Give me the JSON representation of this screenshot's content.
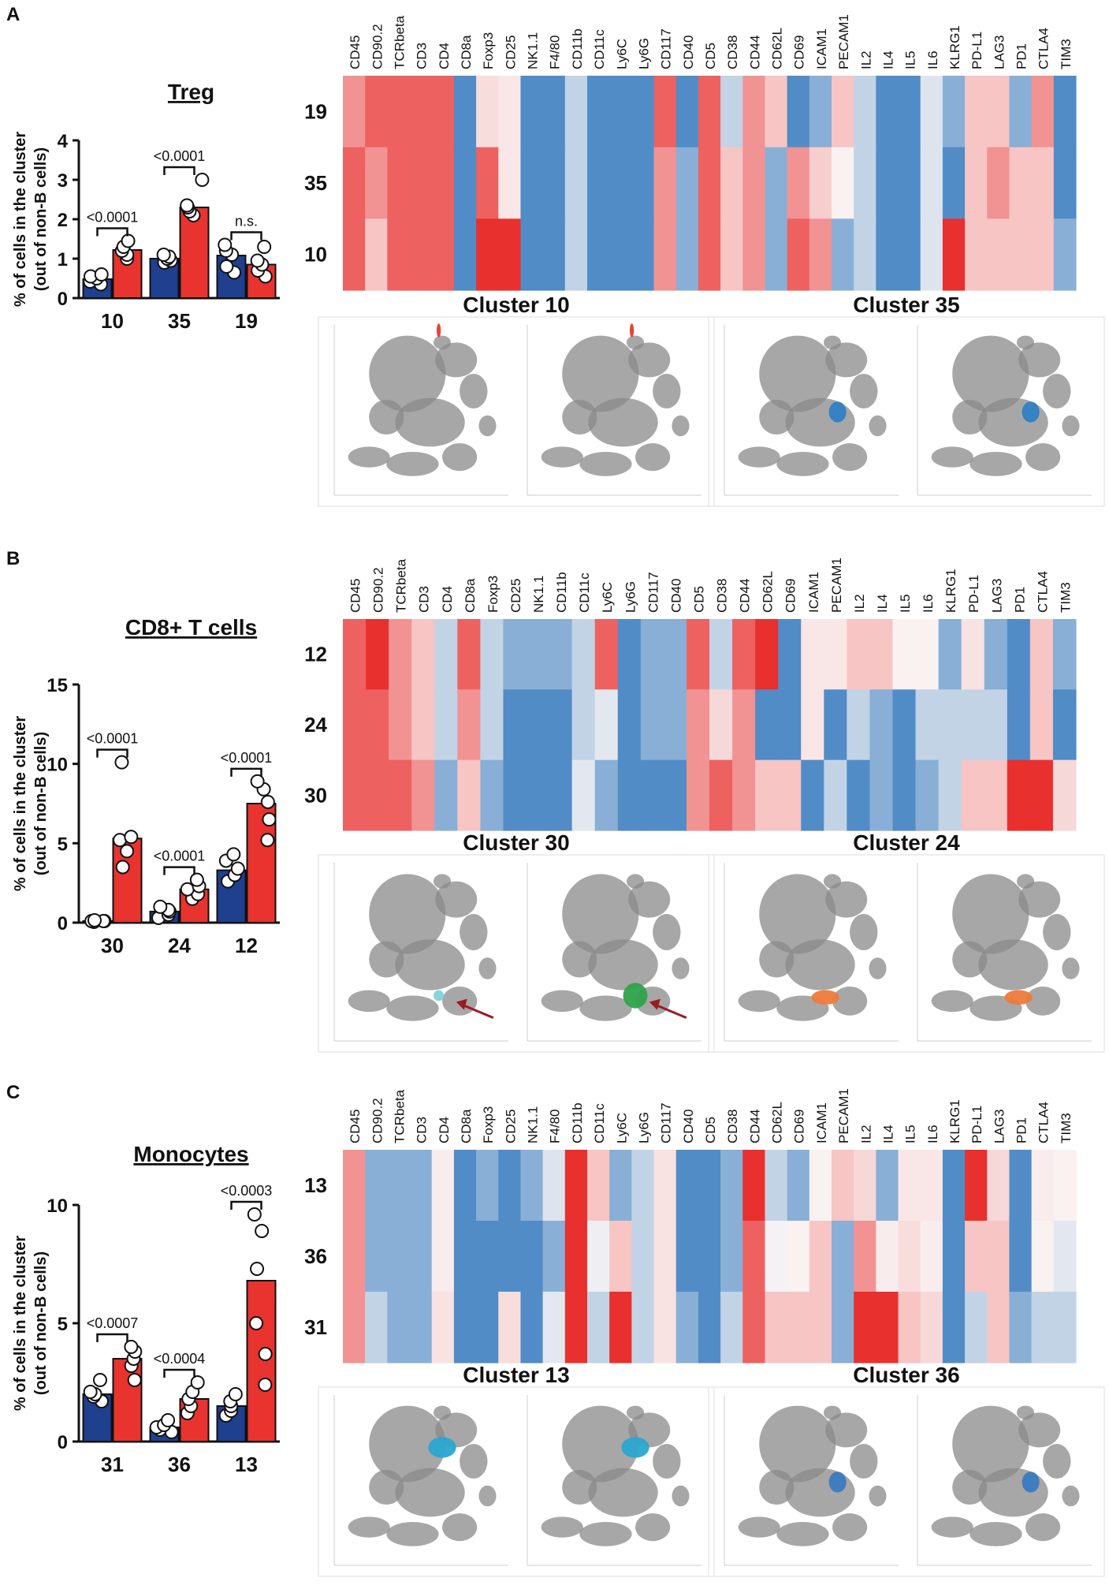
{
  "colors": {
    "ctrl": "#1f3f8f",
    "treat": "#e8332e",
    "tsne_bg": "#8a8a8a"
  },
  "panels": [
    {
      "letter": "A",
      "title": "Treg",
      "ylabel_line1": "% of cells in the cluster",
      "ylabel_line2": "(out of non-B cells)",
      "clusters": [
        {
          "label": "10",
          "ctrl": 0.48,
          "treat": 1.22,
          "ctrl_pts": [
            0.35,
            0.42,
            0.5,
            0.55,
            0.6
          ],
          "treat_pts": [
            1.0,
            1.1,
            1.2,
            1.3,
            1.45
          ],
          "pval": "<0.0001"
        },
        {
          "label": "35",
          "ctrl": 1.0,
          "treat": 2.3,
          "ctrl_pts": [
            0.9,
            0.95,
            1.0,
            1.05,
            1.1
          ],
          "treat_pts": [
            2.1,
            2.2,
            2.3,
            2.35,
            3.0
          ],
          "pval": "<0.0001"
        },
        {
          "label": "19",
          "ctrl": 1.08,
          "treat": 0.85,
          "ctrl_pts": [
            0.65,
            0.8,
            1.1,
            1.2,
            1.35
          ],
          "treat_pts": [
            0.55,
            0.7,
            0.85,
            0.95,
            1.3
          ],
          "pval": "n.s."
        }
      ],
      "ymax": 4,
      "yticks": [
        0,
        1,
        2,
        3,
        4
      ],
      "heatmap": {
        "markers": [
          "CD45",
          "CD90.2",
          "TCRbeta",
          "CD3",
          "CD4",
          "CD8a",
          "Foxp3",
          "CD25",
          "NK1.1",
          "F4/80",
          "CD11b",
          "CD11c",
          "Ly6C",
          "Ly6G",
          "CD117",
          "CD40",
          "CD5",
          "CD38",
          "CD44",
          "CD62L",
          "CD69",
          "ICAM1",
          "PECAM1",
          "IL2",
          "IL4",
          "IL5",
          "IL6",
          "KLRG1",
          "PD-L1",
          "LAG3",
          "PD1",
          "CTLA4",
          "TIM3"
        ],
        "rows": [
          "19",
          "35",
          "10"
        ],
        "values": [
          [
            2,
            3,
            3,
            3,
            3,
            -3,
            0.5,
            0.3,
            -3,
            -3,
            -1,
            -3,
            -3,
            -3,
            3,
            -3,
            3,
            -1,
            2,
            1,
            -3,
            -2,
            1,
            -1,
            -3,
            -3,
            -0.5,
            -2,
            1,
            1,
            -2,
            2,
            -3
          ],
          [
            3,
            2,
            3,
            3,
            3,
            -3,
            3,
            0.3,
            -3,
            -3,
            -1,
            -3,
            -3,
            -3,
            2,
            -2,
            3,
            1,
            2,
            -2,
            2,
            0.8,
            0.1,
            -1,
            -3,
            -3,
            -0.5,
            -3,
            1,
            2,
            1,
            1,
            -3
          ],
          [
            3,
            1,
            3,
            3,
            3,
            -3,
            4,
            4,
            -3,
            -3,
            -1,
            -3,
            -3,
            -3,
            2,
            -2,
            3,
            1,
            2,
            -2,
            3,
            2,
            -2,
            -1,
            -3,
            -3,
            -0.5,
            4,
            1,
            1,
            1,
            1,
            -2
          ]
        ]
      },
      "tsne": {
        "left_title": "Cluster 10",
        "right_title": "Cluster 35",
        "maps": [
          {
            "type": "red-small",
            "color": "#e83a2e",
            "arrow": false
          },
          {
            "type": "red-small",
            "color": "#e83a2e",
            "arrow": false
          },
          {
            "type": "blue-small",
            "color": "#2f7fc4",
            "arrow": false
          },
          {
            "type": "blue-small",
            "color": "#2f7fc4",
            "arrow": false
          }
        ]
      }
    },
    {
      "letter": "B",
      "title": "CD8+ T cells",
      "ylabel_line1": "% of cells in the cluster",
      "ylabel_line2": "(out of non-B cells)",
      "clusters": [
        {
          "label": "30",
          "ctrl": 0.1,
          "treat": 5.3,
          "ctrl_pts": [
            0.05,
            0.1,
            0.1,
            0.1,
            0.15
          ],
          "treat_pts": [
            3.5,
            4.5,
            5.2,
            5.4,
            10.1
          ],
          "pval": "<0.0001"
        },
        {
          "label": "24",
          "ctrl": 0.7,
          "treat": 2.1,
          "ctrl_pts": [
            0.3,
            0.5,
            0.7,
            0.8,
            1.0
          ],
          "treat_pts": [
            1.5,
            1.8,
            2.1,
            2.3,
            2.7
          ],
          "pval": "<0.0001"
        },
        {
          "label": "12",
          "ctrl": 3.3,
          "treat": 7.5,
          "ctrl_pts": [
            2.6,
            3.0,
            3.4,
            3.9,
            4.3
          ],
          "treat_pts": [
            5.2,
            6.5,
            7.6,
            8.4,
            8.9
          ],
          "pval": "<0.0001"
        }
      ],
      "ymax": 15,
      "yticks": [
        0,
        5,
        10,
        15
      ],
      "heatmap": {
        "markers": [
          "CD45",
          "CD90.2",
          "TCRbeta",
          "CD3",
          "CD4",
          "CD8a",
          "Foxp3",
          "CD25",
          "NK1.1",
          "CD11b",
          "CD11c",
          "Ly6C",
          "Ly6G",
          "CD117",
          "CD40",
          "CD5",
          "CD38",
          "CD44",
          "CD62L",
          "CD69",
          "ICAM1",
          "PECAM1",
          "IL2",
          "IL4",
          "IL5",
          "IL6",
          "KLRG1",
          "PD-L1",
          "LAG3",
          "PD1",
          "CTLA4",
          "TIM3"
        ],
        "rows": [
          "12",
          "24",
          "30"
        ],
        "values": [
          [
            3,
            4,
            2,
            1,
            -1,
            3,
            -1,
            -2,
            -2,
            -2,
            -1,
            3,
            -3,
            -2,
            -2,
            3,
            -1,
            3,
            4,
            -3,
            0.3,
            0.3,
            1,
            1,
            0.1,
            0.1,
            -2,
            0.4,
            -2,
            -3,
            1,
            -2
          ],
          [
            3,
            3,
            2,
            1,
            -1,
            2,
            -1,
            -3,
            -3,
            -3,
            -1,
            -0.4,
            -3,
            -2,
            -2,
            2,
            0.6,
            2,
            -3,
            -3,
            0.3,
            -3,
            -1,
            -2,
            -3,
            -1,
            -1,
            -1,
            -1,
            -3,
            1,
            -3
          ],
          [
            3,
            3,
            3,
            2,
            -2,
            1,
            -2,
            -3,
            -3,
            -3,
            -0.4,
            -2,
            -3,
            -3,
            -3,
            2,
            3,
            2,
            1,
            1,
            -3,
            -1,
            -3,
            -2,
            -3,
            -2,
            -1,
            1,
            1,
            4,
            4,
            0.6
          ]
        ]
      },
      "tsne": {
        "left_title": "Cluster 30",
        "right_title": "Cluster 24",
        "maps": [
          {
            "type": "cyan-tiny",
            "color": "#7fd3d8",
            "arrow": true
          },
          {
            "type": "green-blob",
            "color": "#2fa24a",
            "arrow": true
          },
          {
            "type": "orange-small",
            "color": "#ee7a3a",
            "arrow": false
          },
          {
            "type": "orange-small",
            "color": "#ee7a3a",
            "arrow": false
          }
        ]
      }
    },
    {
      "letter": "C",
      "title": "Monocytes",
      "ylabel_line1": "% of cells in the cluster",
      "ylabel_line2": "(out of non-B cells)",
      "clusters": [
        {
          "label": "31",
          "ctrl": 2.0,
          "treat": 3.5,
          "ctrl_pts": [
            1.7,
            1.9,
            2.0,
            2.1,
            2.6
          ],
          "treat_pts": [
            2.6,
            3.2,
            3.5,
            3.8,
            4.0
          ],
          "pval": "<0.0007"
        },
        {
          "label": "36",
          "ctrl": 0.6,
          "treat": 1.8,
          "ctrl_pts": [
            0.4,
            0.5,
            0.6,
            0.7,
            0.9
          ],
          "treat_pts": [
            1.2,
            1.5,
            1.8,
            2.1,
            2.5
          ],
          "pval": "<0.0004"
        },
        {
          "label": "13",
          "ctrl": 1.5,
          "treat": 6.8,
          "ctrl_pts": [
            1.1,
            1.3,
            1.5,
            1.7,
            2.0
          ],
          "treat_pts": [
            2.4,
            3.7,
            5.0,
            7.3,
            8.9,
            9.6
          ],
          "pval": "<0.0003"
        }
      ],
      "ymax": 10,
      "yticks": [
        0,
        5,
        10
      ],
      "heatmap": {
        "markers": [
          "CD45",
          "CD90.2",
          "TCRbeta",
          "CD3",
          "CD4",
          "CD8a",
          "Foxp3",
          "CD25",
          "NK1.1",
          "F4/80",
          "CD11b",
          "CD11c",
          "Ly6C",
          "Ly6G",
          "CD117",
          "CD40",
          "CD5",
          "CD38",
          "CD44",
          "CD62L",
          "CD69",
          "ICAM1",
          "PECAM1",
          "IL2",
          "IL4",
          "IL5",
          "IL6",
          "KLRG1",
          "PD-L1",
          "LAG3",
          "PD1",
          "CTLA4",
          "TIM3"
        ],
        "rows": [
          "13",
          "36",
          "31"
        ],
        "values": [
          [
            2,
            -2,
            -2,
            -2,
            0.2,
            -3,
            -2,
            -3,
            -2,
            -0.5,
            4,
            1,
            -2,
            -1,
            0.4,
            -3,
            -3,
            -2,
            4,
            -1,
            -2,
            0.1,
            1,
            0.6,
            -2,
            0.3,
            0.3,
            -3,
            4,
            0.6,
            -3,
            0.2,
            0.1
          ],
          [
            2,
            -2,
            -2,
            -2,
            0.2,
            -3,
            -3,
            -3,
            -3,
            -2,
            4,
            -0.2,
            1,
            -1,
            0.4,
            -3,
            -3,
            -2,
            3,
            -0.1,
            0.1,
            1,
            -2,
            2,
            0.2,
            0.5,
            0.2,
            -3,
            1,
            1,
            -3,
            0.1,
            -0.4
          ],
          [
            2,
            -1,
            -2,
            -2,
            0.4,
            -3,
            -3,
            0.5,
            -3,
            -0.4,
            4,
            -1,
            4,
            -1,
            0.4,
            -2,
            -3,
            -1,
            3,
            1,
            1,
            1,
            -2,
            4,
            4,
            1,
            0.6,
            -3,
            -1,
            1,
            -2,
            -1,
            -1
          ]
        ]
      },
      "tsne": {
        "left_title": "Cluster 13",
        "right_title": "Cluster 36",
        "maps": [
          {
            "type": "cyan-blob",
            "color": "#2aa7d0",
            "arrow": false
          },
          {
            "type": "cyan-blob",
            "color": "#2aa7d0",
            "arrow": false
          },
          {
            "type": "blue-small",
            "color": "#3a7ac0",
            "arrow": false
          },
          {
            "type": "blue-small",
            "color": "#3a7ac0",
            "arrow": false
          }
        ]
      }
    }
  ]
}
